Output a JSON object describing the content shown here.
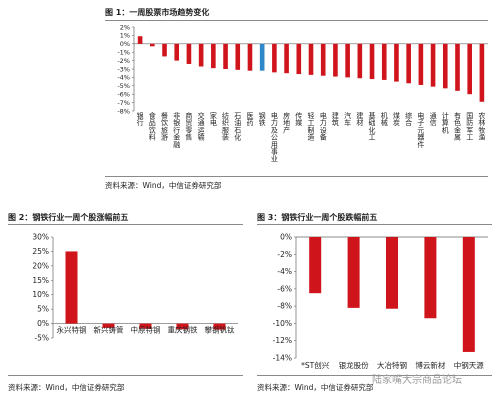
{
  "figure1": {
    "title": "图 1：一周股票市场趋势变化",
    "source": "资料来源：Wind，中信证券研究部"
  },
  "figure2": {
    "title": "图 2：钢铁行业一周个股涨幅前五",
    "source": "资料来源：Wind，中信证券研究部"
  },
  "figure3": {
    "title": "图 3：钢铁行业一周个股跌幅前五",
    "source": "资料来源：Wind，中信证券研究部"
  },
  "watermark": "陆家嘴大宗商品论坛",
  "colors": {
    "bar": "#d0141b",
    "highlight": "#2e87c8",
    "axis": "#666666"
  },
  "chart_data": [
    {
      "type": "bar",
      "categories": [
        "银行",
        "食品饮料",
        "餐饮旅游",
        "非银行金融",
        "商贸零售",
        "交通运输",
        "家电",
        "纺织服装",
        "石油石化",
        "医药",
        "钢铁",
        "电力及公用事业",
        "房地产",
        "传媒",
        "轻工制造",
        "电力设备",
        "建筑",
        "汽车",
        "建材",
        "基础化工",
        "机械",
        "煤炭",
        "综合",
        "电子元器件",
        "通信",
        "计算机",
        "有色金属",
        "国防军工",
        "农林牧渔"
      ],
      "values": [
        0.9,
        -0.3,
        -1.5,
        -2.0,
        -2.4,
        -2.7,
        -2.9,
        -3.0,
        -3.1,
        -3.2,
        -3.2,
        -3.4,
        -3.5,
        -3.6,
        -3.7,
        -3.8,
        -3.9,
        -4.0,
        -4.1,
        -4.2,
        -4.3,
        -4.5,
        -4.7,
        -4.9,
        -5.1,
        -5.3,
        -5.6,
        -6.0,
        -6.9
      ],
      "highlight_index": 10,
      "yticks": [
        "2%",
        "1%",
        "0%",
        "-1%",
        "-2%",
        "-3%",
        "-4%",
        "-5%",
        "-6%",
        "-7%",
        "-8%"
      ],
      "ylim": [
        -8,
        2
      ]
    },
    {
      "type": "bar",
      "categories": [
        "永兴特钢",
        "新兴铸管",
        "中原特钢",
        "重庆钢铁",
        "攀钢钒钛"
      ],
      "values": [
        25.0,
        -1.5,
        -1.8,
        -2.0,
        -2.1
      ],
      "yticks": [
        "30%",
        "25%",
        "20%",
        "15%",
        "10%",
        "5%",
        "0%",
        "-5%"
      ],
      "ylim": [
        -5,
        30
      ]
    },
    {
      "type": "bar",
      "categories": [
        "*ST创兴",
        "银龙股份",
        "大冶特钢",
        "博云新材",
        "中钢天源"
      ],
      "values": [
        -6.5,
        -8.2,
        -8.3,
        -9.4,
        -13.3
      ],
      "yticks": [
        "0%",
        "-2%",
        "-4%",
        "-6%",
        "-8%",
        "-10%",
        "-12%",
        "-14%"
      ],
      "ylim": [
        -14,
        0
      ]
    }
  ]
}
